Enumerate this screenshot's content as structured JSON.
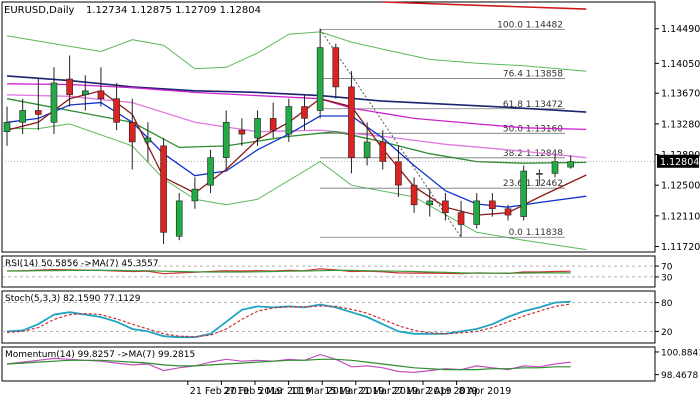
{
  "header": {
    "symbol_label": "EURUSD,Daily",
    "ohlc_label": "1.12734 1.12875 1.12709 1.12804"
  },
  "colors": {
    "up_candle": "#22aa44",
    "down_candle": "#dd2222",
    "ma_fast": "#8b1a1a",
    "ma_mid": "#1133cc",
    "ma_green": "#2e8b2e",
    "ma_magenta": "#cc22cc",
    "ma_violet": "#e079e0",
    "ma_navy": "#1a2470",
    "ma_red_long": "#cc1a1a",
    "bollinger": "#5cb85c",
    "fib_line": "#555555",
    "price_box": "#000000",
    "rsi_line": "#c83232",
    "rsi_ma": "#3c9a3c",
    "stoch_main": "#1fa3c4",
    "stoch_signal": "#c83232",
    "momentum": "#c050c0",
    "momentum_ma": "#2e8b2e"
  },
  "chart_data": {
    "type": "candlestick",
    "instrument": "EURUSD",
    "timeframe": "Daily",
    "y_range": [
      1.1165,
      1.1483
    ],
    "y_ticks": [
      "1.14490",
      "1.14050",
      "1.13670",
      "1.13280",
      "1.12890",
      "1.12500",
      "1.12110",
      "1.11720"
    ],
    "current_price": "1.12804",
    "x_labels": [
      {
        "label": "21 Feb 2019",
        "index": 0
      },
      {
        "label": "27 Feb 2019",
        "index": 4
      },
      {
        "label": "5 Mar 2019",
        "index": 8
      },
      {
        "label": "11 Mar 2019",
        "index": 12
      },
      {
        "label": "15 Mar 2019",
        "index": 16
      },
      {
        "label": "21 Mar 2019",
        "index": 20
      },
      {
        "label": "27 Mar 2019",
        "index": 24
      },
      {
        "label": "2 Apr 2019",
        "index": 28
      },
      {
        "label": "8 Apr 2019",
        "index": 32
      }
    ],
    "candles": [
      {
        "o": 1.1318,
        "h": 1.135,
        "l": 1.13,
        "c": 1.133
      },
      {
        "o": 1.133,
        "h": 1.136,
        "l": 1.1315,
        "c": 1.1345
      },
      {
        "o": 1.1345,
        "h": 1.1385,
        "l": 1.132,
        "c": 1.134
      },
      {
        "o": 1.133,
        "h": 1.14,
        "l": 1.1315,
        "c": 1.138
      },
      {
        "o": 1.1385,
        "h": 1.1415,
        "l": 1.135,
        "c": 1.1365
      },
      {
        "o": 1.1365,
        "h": 1.139,
        "l": 1.1345,
        "c": 1.137
      },
      {
        "o": 1.137,
        "h": 1.14,
        "l": 1.135,
        "c": 1.136
      },
      {
        "o": 1.136,
        "h": 1.138,
        "l": 1.132,
        "c": 1.133
      },
      {
        "o": 1.133,
        "h": 1.136,
        "l": 1.127,
        "c": 1.1305
      },
      {
        "o": 1.1305,
        "h": 1.133,
        "l": 1.128,
        "c": 1.131
      },
      {
        "o": 1.13,
        "h": 1.131,
        "l": 1.1175,
        "c": 1.119
      },
      {
        "o": 1.1185,
        "h": 1.124,
        "l": 1.118,
        "c": 1.123
      },
      {
        "o": 1.123,
        "h": 1.126,
        "l": 1.122,
        "c": 1.1245
      },
      {
        "o": 1.125,
        "h": 1.1295,
        "l": 1.124,
        "c": 1.1285
      },
      {
        "o": 1.1285,
        "h": 1.1345,
        "l": 1.127,
        "c": 1.133
      },
      {
        "o": 1.132,
        "h": 1.1335,
        "l": 1.13,
        "c": 1.1315
      },
      {
        "o": 1.131,
        "h": 1.1345,
        "l": 1.13,
        "c": 1.1335
      },
      {
        "o": 1.1335,
        "h": 1.1355,
        "l": 1.131,
        "c": 1.132
      },
      {
        "o": 1.1315,
        "h": 1.136,
        "l": 1.1305,
        "c": 1.135
      },
      {
        "o": 1.135,
        "h": 1.1365,
        "l": 1.132,
        "c": 1.1335
      },
      {
        "o": 1.1345,
        "h": 1.1449,
        "l": 1.1335,
        "c": 1.1425
      },
      {
        "o": 1.1425,
        "h": 1.143,
        "l": 1.136,
        "c": 1.1375
      },
      {
        "o": 1.1375,
        "h": 1.1395,
        "l": 1.1265,
        "c": 1.1285
      },
      {
        "o": 1.1285,
        "h": 1.133,
        "l": 1.1275,
        "c": 1.1305
      },
      {
        "o": 1.1305,
        "h": 1.132,
        "l": 1.127,
        "c": 1.128
      },
      {
        "o": 1.128,
        "h": 1.13,
        "l": 1.1235,
        "c": 1.125
      },
      {
        "o": 1.125,
        "h": 1.126,
        "l": 1.1215,
        "c": 1.1225
      },
      {
        "o": 1.1225,
        "h": 1.1245,
        "l": 1.121,
        "c": 1.123
      },
      {
        "o": 1.123,
        "h": 1.124,
        "l": 1.1205,
        "c": 1.1215
      },
      {
        "o": 1.1215,
        "h": 1.123,
        "l": 1.1184,
        "c": 1.12
      },
      {
        "o": 1.12,
        "h": 1.124,
        "l": 1.1195,
        "c": 1.123
      },
      {
        "o": 1.123,
        "h": 1.124,
        "l": 1.121,
        "c": 1.122
      },
      {
        "o": 1.122,
        "h": 1.1225,
        "l": 1.1205,
        "c": 1.1212
      },
      {
        "o": 1.121,
        "h": 1.1275,
        "l": 1.1205,
        "c": 1.1268
      },
      {
        "o": 1.1265,
        "h": 1.127,
        "l": 1.125,
        "c": 1.1265
      },
      {
        "o": 1.1265,
        "h": 1.129,
        "l": 1.126,
        "c": 1.128
      },
      {
        "o": 1.1273,
        "h": 1.1288,
        "l": 1.1271,
        "c": 1.128
      }
    ],
    "moving_averages": [
      {
        "color_key": "ma_red_long",
        "points": [
          [
            24,
            1.1483
          ],
          [
            37,
            1.1474
          ]
        ]
      },
      {
        "color_key": "ma_navy",
        "points": [
          [
            0,
            1.1389
          ],
          [
            4,
            1.1383
          ],
          [
            8,
            1.1375
          ],
          [
            12,
            1.137
          ],
          [
            16,
            1.1368
          ],
          [
            20,
            1.1364
          ],
          [
            24,
            1.1357
          ],
          [
            28,
            1.1353
          ],
          [
            32,
            1.1349
          ],
          [
            37,
            1.1343
          ]
        ]
      },
      {
        "color_key": "ma_magenta",
        "points": [
          [
            0,
            1.1379
          ],
          [
            4,
            1.1378
          ],
          [
            8,
            1.1374
          ],
          [
            12,
            1.1368
          ],
          [
            16,
            1.1364
          ],
          [
            20,
            1.136
          ],
          [
            22,
            1.1348
          ],
          [
            26,
            1.1335
          ],
          [
            30,
            1.1328
          ],
          [
            33,
            1.1323
          ],
          [
            37,
            1.1321
          ]
        ]
      },
      {
        "color_key": "ma_violet",
        "points": [
          [
            0,
            1.1365
          ],
          [
            4,
            1.1363
          ],
          [
            8,
            1.1355
          ],
          [
            12,
            1.133
          ],
          [
            16,
            1.1318
          ],
          [
            20,
            1.132
          ],
          [
            24,
            1.1312
          ],
          [
            28,
            1.1302
          ],
          [
            32,
            1.1295
          ],
          [
            35,
            1.1289
          ],
          [
            37,
            1.1285
          ]
        ]
      },
      {
        "color_key": "ma_green",
        "points": [
          [
            0,
            1.136
          ],
          [
            4,
            1.1345
          ],
          [
            8,
            1.133
          ],
          [
            11,
            1.1298
          ],
          [
            14,
            1.13
          ],
          [
            18,
            1.1312
          ],
          [
            21,
            1.1318
          ],
          [
            24,
            1.1305
          ],
          [
            27,
            1.129
          ],
          [
            30,
            1.128
          ],
          [
            33,
            1.1278
          ],
          [
            37,
            1.1279
          ]
        ]
      },
      {
        "color_key": "ma_mid",
        "points": [
          [
            0,
            1.133
          ],
          [
            2,
            1.1335
          ],
          [
            4,
            1.1352
          ],
          [
            6,
            1.1355
          ],
          [
            8,
            1.133
          ],
          [
            10,
            1.129
          ],
          [
            12,
            1.1262
          ],
          [
            14,
            1.1268
          ],
          [
            16,
            1.1295
          ],
          [
            18,
            1.1315
          ],
          [
            20,
            1.1338
          ],
          [
            22,
            1.1338
          ],
          [
            24,
            1.131
          ],
          [
            26,
            1.1275
          ],
          [
            28,
            1.1243
          ],
          [
            30,
            1.1226
          ],
          [
            32,
            1.1222
          ],
          [
            34,
            1.1228
          ],
          [
            37,
            1.1236
          ]
        ]
      },
      {
        "color_key": "ma_fast",
        "points": [
          [
            0,
            1.132
          ],
          [
            2,
            1.133
          ],
          [
            4,
            1.136
          ],
          [
            6,
            1.137
          ],
          [
            8,
            1.134
          ],
          [
            10,
            1.126
          ],
          [
            12,
            1.124
          ],
          [
            14,
            1.127
          ],
          [
            16,
            1.1308
          ],
          [
            18,
            1.133
          ],
          [
            20,
            1.136
          ],
          [
            22,
            1.135
          ],
          [
            24,
            1.1296
          ],
          [
            26,
            1.1248
          ],
          [
            28,
            1.1222
          ],
          [
            30,
            1.1212
          ],
          [
            32,
            1.1215
          ],
          [
            34,
            1.1235
          ],
          [
            37,
            1.1263
          ]
        ]
      }
    ],
    "bollinger_bands": [
      {
        "points": [
          [
            0,
            1.144
          ],
          [
            3,
            1.143
          ],
          [
            6,
            1.142
          ],
          [
            8,
            1.1435
          ],
          [
            10,
            1.1428
          ],
          [
            12,
            1.1398
          ],
          [
            14,
            1.14
          ],
          [
            16,
            1.1418
          ],
          [
            18,
            1.1442
          ],
          [
            20,
            1.1445
          ],
          [
            22,
            1.1432
          ],
          [
            24,
            1.1423
          ],
          [
            27,
            1.141
          ],
          [
            30,
            1.1405
          ],
          [
            33,
            1.1402
          ],
          [
            37,
            1.1395
          ]
        ]
      },
      {
        "points": [
          [
            0,
            1.1322
          ],
          [
            2,
            1.1322
          ],
          [
            4,
            1.1328
          ],
          [
            8,
            1.13
          ],
          [
            10,
            1.1258
          ],
          [
            12,
            1.1232
          ],
          [
            14,
            1.1225
          ],
          [
            16,
            1.1232
          ],
          [
            20,
            1.128
          ],
          [
            22,
            1.125
          ],
          [
            26,
            1.1235
          ],
          [
            30,
            1.119
          ],
          [
            33,
            1.118
          ],
          [
            37,
            1.1168
          ]
        ]
      }
    ],
    "fibonacci_levels": [
      {
        "label": "100.0 1.14482",
        "value": 1.14482
      },
      {
        "label": "76.4 1.13858",
        "value": 1.13858
      },
      {
        "label": "61.8 1.13472",
        "value": 1.13472
      },
      {
        "label": "50.0 1.13160",
        "value": 1.1316
      },
      {
        "label": "38.2 1.12848",
        "value": 1.12848
      },
      {
        "label": "23.6 1.12462",
        "value": 1.12462
      },
      {
        "label": "0.0 1.11838",
        "value": 1.11838
      }
    ],
    "fib_anchor": {
      "high_index": 20,
      "high": 1.14482,
      "low_index": 29,
      "low": 1.11838
    },
    "indicators": [
      {
        "name": "RSI",
        "label": "RSI(14) 50.5856   ->MA(7) 45.3557",
        "ticks": [
          "70",
          "30"
        ],
        "tick_values": [
          70,
          30
        ],
        "range": [
          0,
          100
        ],
        "levels": [
          70,
          30
        ],
        "series": [
          {
            "color_key": "rsi_line",
            "values": [
              52,
              53,
              55,
              57,
              56,
              55,
              54,
              52,
              50,
              51,
              42,
              45,
              47,
              50,
              53,
              52,
              53,
              52,
              54,
              53,
              60,
              56,
              50,
              51,
              49,
              45,
              44,
              44,
              43,
              42,
              45,
              44,
              43,
              48,
              48,
              50,
              51
            ]
          },
          {
            "color_key": "rsi_ma",
            "values": [
              52,
              52,
              53,
              53,
              54,
              54,
              54,
              54,
              53,
              53,
              51,
              50,
              49,
              48,
              48,
              48,
              49,
              50,
              51,
              52,
              53,
              54,
              54,
              53,
              52,
              51,
              50,
              48,
              47,
              45,
              44,
              44,
              44,
              44,
              45,
              45,
              45
            ]
          }
        ]
      },
      {
        "name": "Stochastic",
        "label": "Stoch(5,3,3) 82.1590 77.1129",
        "ticks": [
          "80",
          "20"
        ],
        "tick_values": [
          80,
          20
        ],
        "range": [
          0,
          100
        ],
        "levels": [
          80,
          20
        ],
        "series": [
          {
            "color_key": "stoch_main",
            "values": [
              20,
              22,
              35,
              55,
              60,
              55,
              50,
              40,
              25,
              20,
              10,
              8,
              8,
              15,
              40,
              65,
              72,
              70,
              72,
              70,
              76,
              70,
              60,
              50,
              35,
              20,
              15,
              15,
              15,
              20,
              25,
              35,
              50,
              62,
              70,
              80,
              82
            ]
          },
          {
            "color_key": "stoch_signal",
            "values": [
              18,
              20,
              28,
              45,
              55,
              57,
              55,
              46,
              35,
              25,
              15,
              10,
              9,
              12,
              25,
              45,
              62,
              69,
              71,
              71,
              73,
              72,
              66,
              58,
              45,
              32,
              22,
              17,
              15,
              17,
              20,
              28,
              40,
              52,
              62,
              72,
              77
            ]
          }
        ]
      },
      {
        "name": "Momentum",
        "label": "Momentum(14) 99.8257   ->MA(7) 99.2815",
        "ticks": [
          "100.8841",
          "98.4678"
        ],
        "tick_values": [
          100.8841,
          98.4678
        ],
        "range": [
          98.0,
          101.2
        ],
        "series": [
          {
            "color_key": "momentum",
            "values": [
              99.6,
              99.8,
              100.0,
              100.2,
              100.1,
              100.0,
              99.9,
              99.7,
              99.5,
              99.6,
              98.9,
              99.2,
              99.4,
              99.8,
              100.1,
              99.9,
              100.0,
              99.9,
              100.1,
              100.0,
              100.6,
              100.1,
              99.3,
              99.4,
              99.2,
              98.8,
              98.7,
              98.9,
              99.1,
              99.0,
              99.4,
              99.2,
              99.0,
              99.4,
              99.3,
              99.6,
              99.8
            ]
          },
          {
            "color_key": "momentum_ma",
            "values": [
              99.6,
              99.7,
              99.8,
              99.9,
              100.0,
              100.0,
              100.0,
              99.9,
              99.8,
              99.7,
              99.5,
              99.4,
              99.4,
              99.5,
              99.6,
              99.7,
              99.8,
              99.9,
              100.0,
              100.0,
              100.1,
              100.1,
              100.0,
              99.8,
              99.6,
              99.4,
              99.2,
              99.1,
              99.0,
              99.0,
              99.0,
              99.1,
              99.1,
              99.2,
              99.2,
              99.3,
              99.3
            ]
          }
        ]
      }
    ]
  }
}
